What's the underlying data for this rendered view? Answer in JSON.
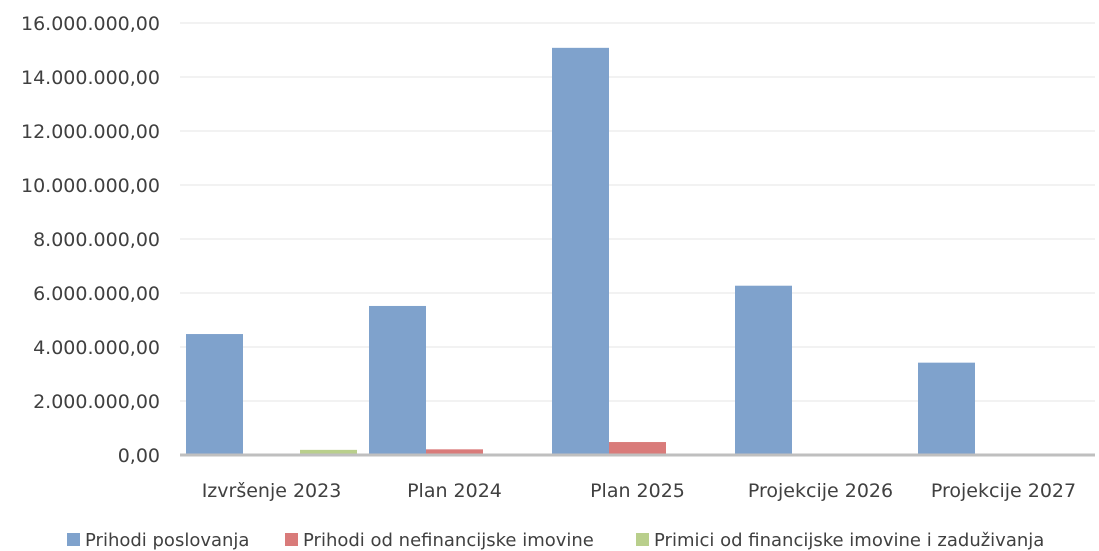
{
  "chart_data": {
    "type": "bar",
    "categories": [
      "Izvršenje 2023",
      "Plan 2024",
      "Plan 2025",
      "Projekcije 2026",
      "Projekcije 2027"
    ],
    "series": [
      {
        "name": "Prihodi poslovanja",
        "color": "#7fa2cc",
        "values": [
          4480000,
          5520000,
          15080000,
          6270000,
          3420000
        ]
      },
      {
        "name": "Prihodi od nefinancijske imovine",
        "color": "#d97b7a",
        "values": [
          0,
          210000,
          480000,
          0,
          0
        ]
      },
      {
        "name": "Primici od financijske imovine i zaduživanja",
        "color": "#b9cf8c",
        "values": [
          190000,
          0,
          0,
          0,
          0
        ]
      }
    ],
    "y_ticks": [
      "0,00",
      "2.000.000,00",
      "4.000.000,00",
      "6.000.000,00",
      "8.000.000,00",
      "10.000.000,00",
      "12.000.000,00",
      "14.000.000,00",
      "16.000.000,00"
    ],
    "ylim": [
      0,
      16000000
    ],
    "grid": true,
    "legend_position": "bottom"
  }
}
